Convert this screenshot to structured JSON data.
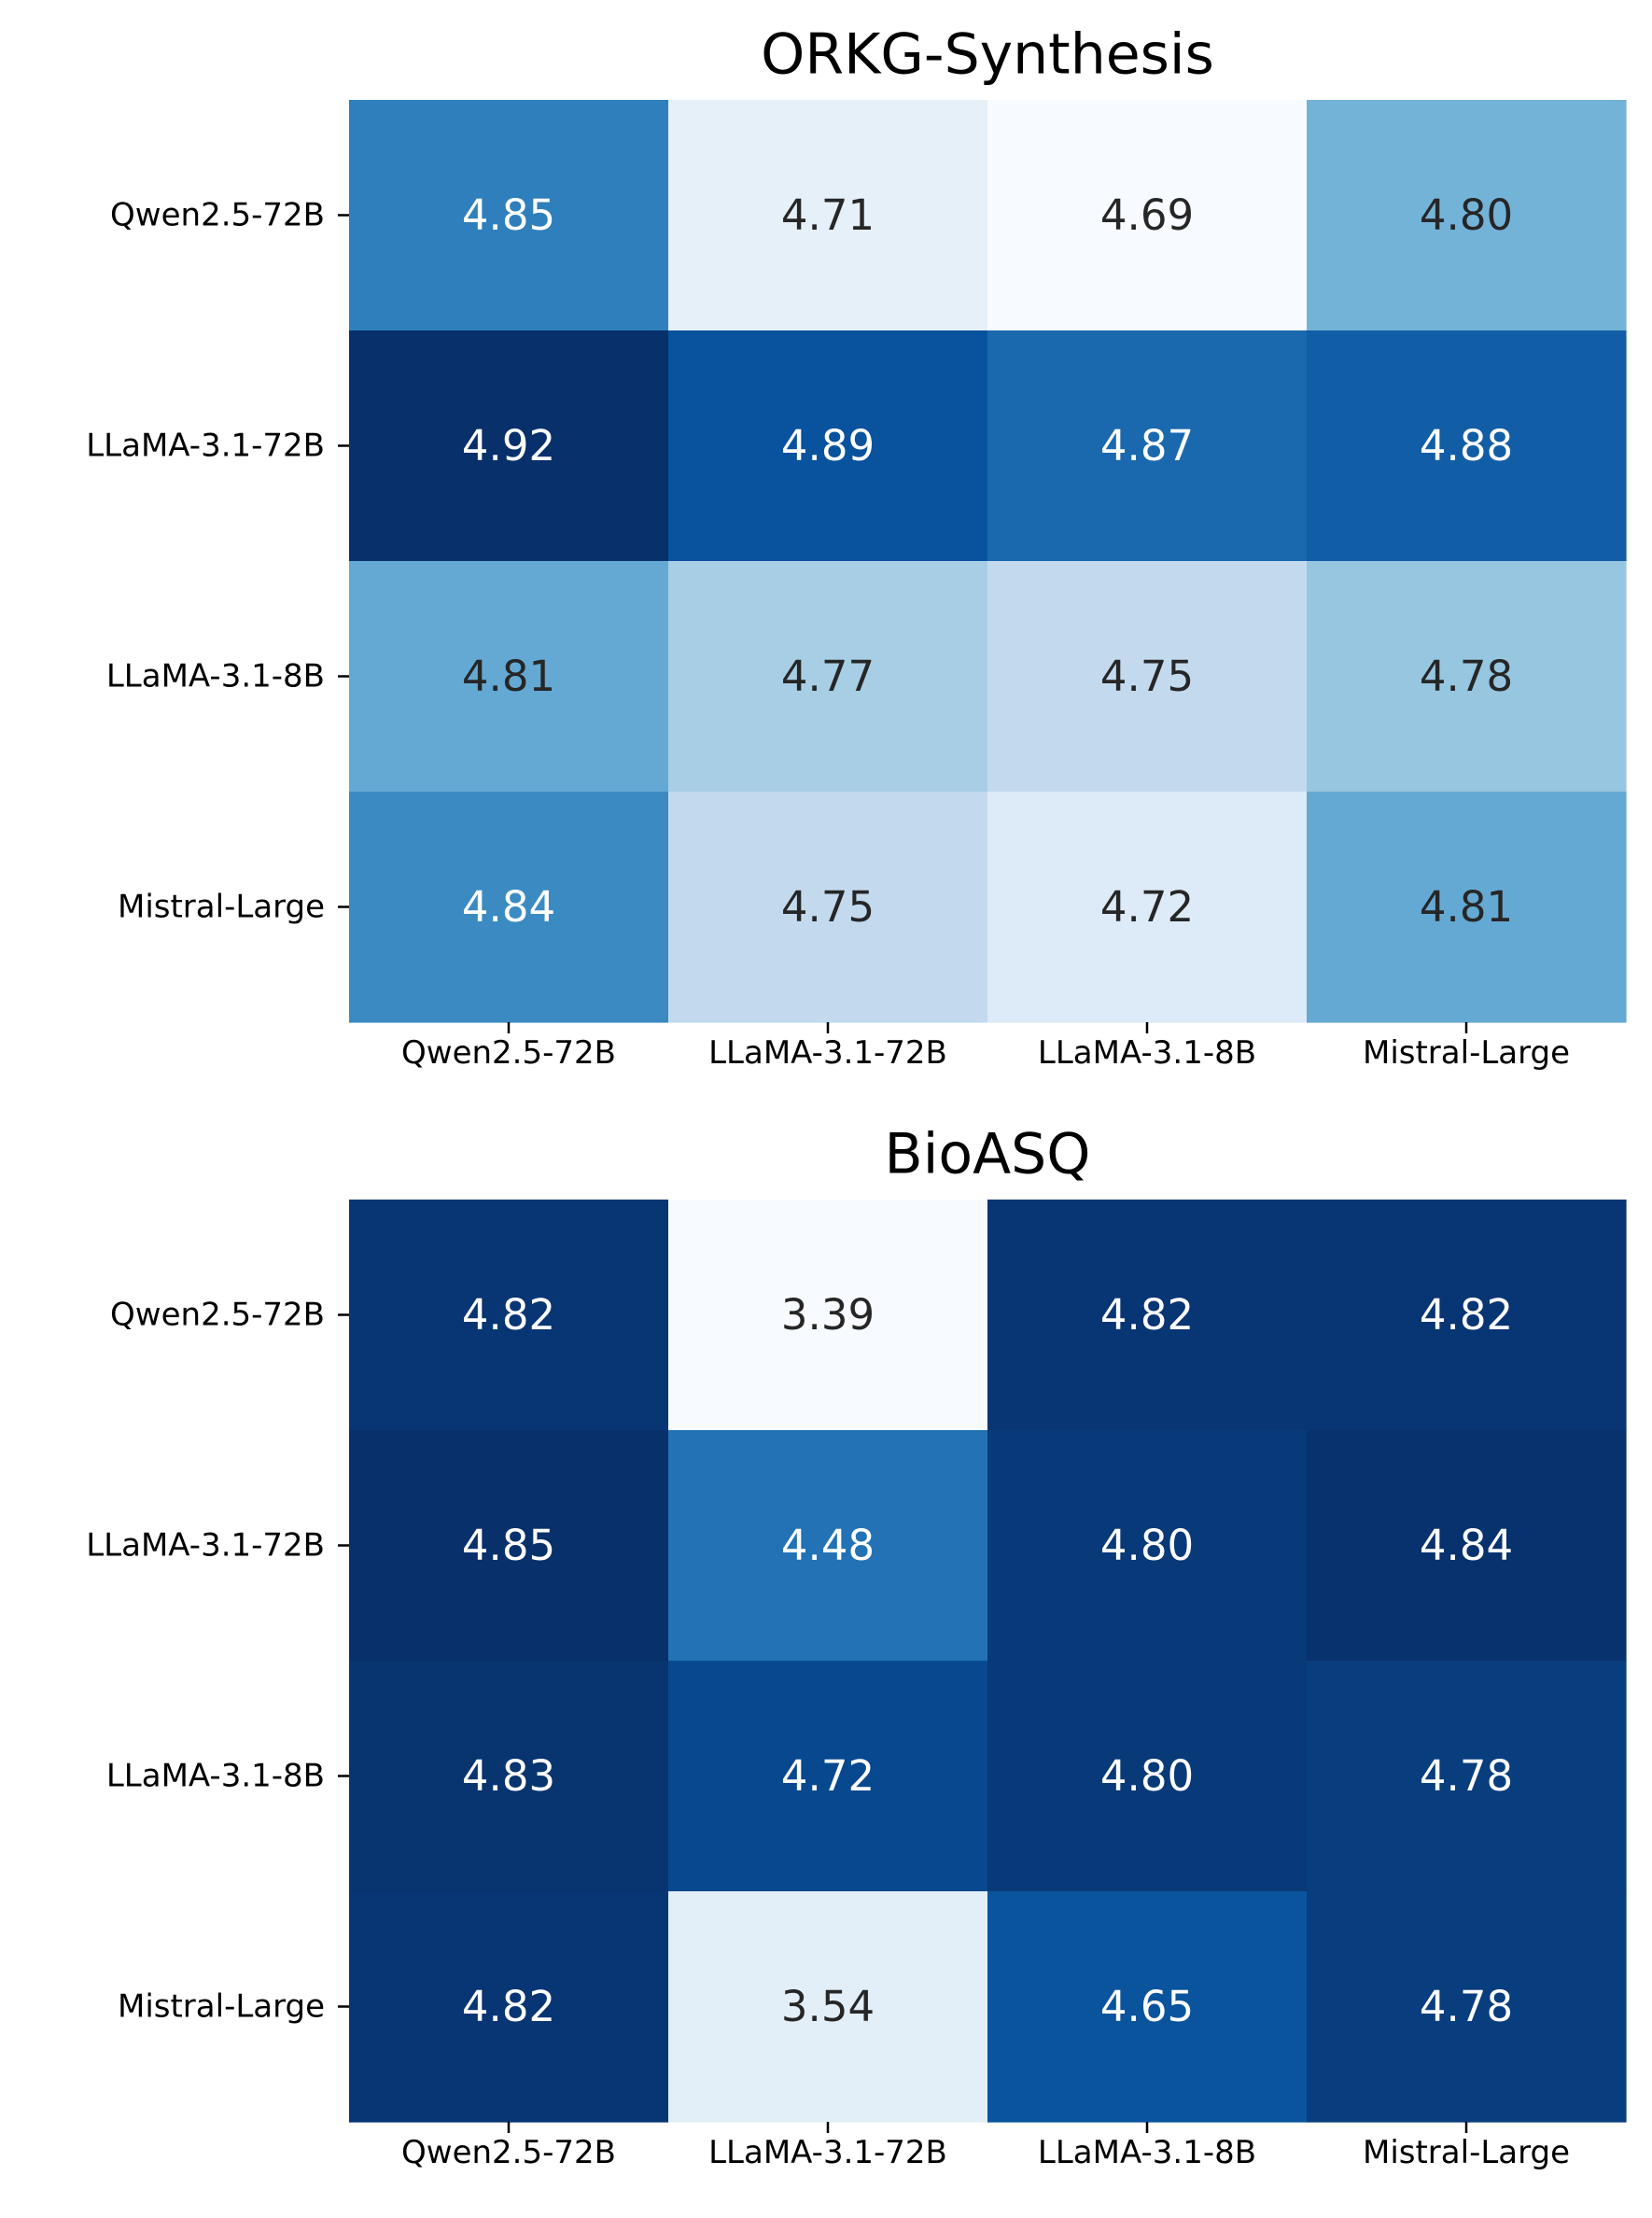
{
  "chart_data": [
    {
      "type": "heatmap",
      "title": "ORKG-Synthesis",
      "row_labels": [
        "Qwen2.5-72B",
        "LLaMA-3.1-72B",
        "LLaMA-3.1-8B",
        "Mistral-Large"
      ],
      "col_labels": [
        "Qwen2.5-72B",
        "LLaMA-3.1-72B",
        "LLaMA-3.1-8B",
        "Mistral-Large"
      ],
      "values": [
        [
          4.85,
          4.71,
          4.69,
          4.8
        ],
        [
          4.92,
          4.89,
          4.87,
          4.88
        ],
        [
          4.81,
          4.77,
          4.75,
          4.78
        ],
        [
          4.84,
          4.75,
          4.72,
          4.81
        ]
      ],
      "value_format": "2 decimals",
      "colormap": "Blues",
      "color_range": [
        4.69,
        4.92
      ],
      "colorbar": false,
      "grid": false
    },
    {
      "type": "heatmap",
      "title": "BioASQ",
      "row_labels": [
        "Qwen2.5-72B",
        "LLaMA-3.1-72B",
        "LLaMA-3.1-8B",
        "Mistral-Large"
      ],
      "col_labels": [
        "Qwen2.5-72B",
        "LLaMA-3.1-72B",
        "LLaMA-3.1-8B",
        "Mistral-Large"
      ],
      "values": [
        [
          4.82,
          3.39,
          4.82,
          4.82
        ],
        [
          4.85,
          4.48,
          4.8,
          4.84
        ],
        [
          4.83,
          4.72,
          4.8,
          4.78
        ],
        [
          4.82,
          3.54,
          4.65,
          4.78
        ]
      ],
      "value_format": "2 decimals",
      "colormap": "Blues",
      "color_range": [
        3.39,
        4.85
      ],
      "colorbar": false,
      "grid": false
    }
  ]
}
